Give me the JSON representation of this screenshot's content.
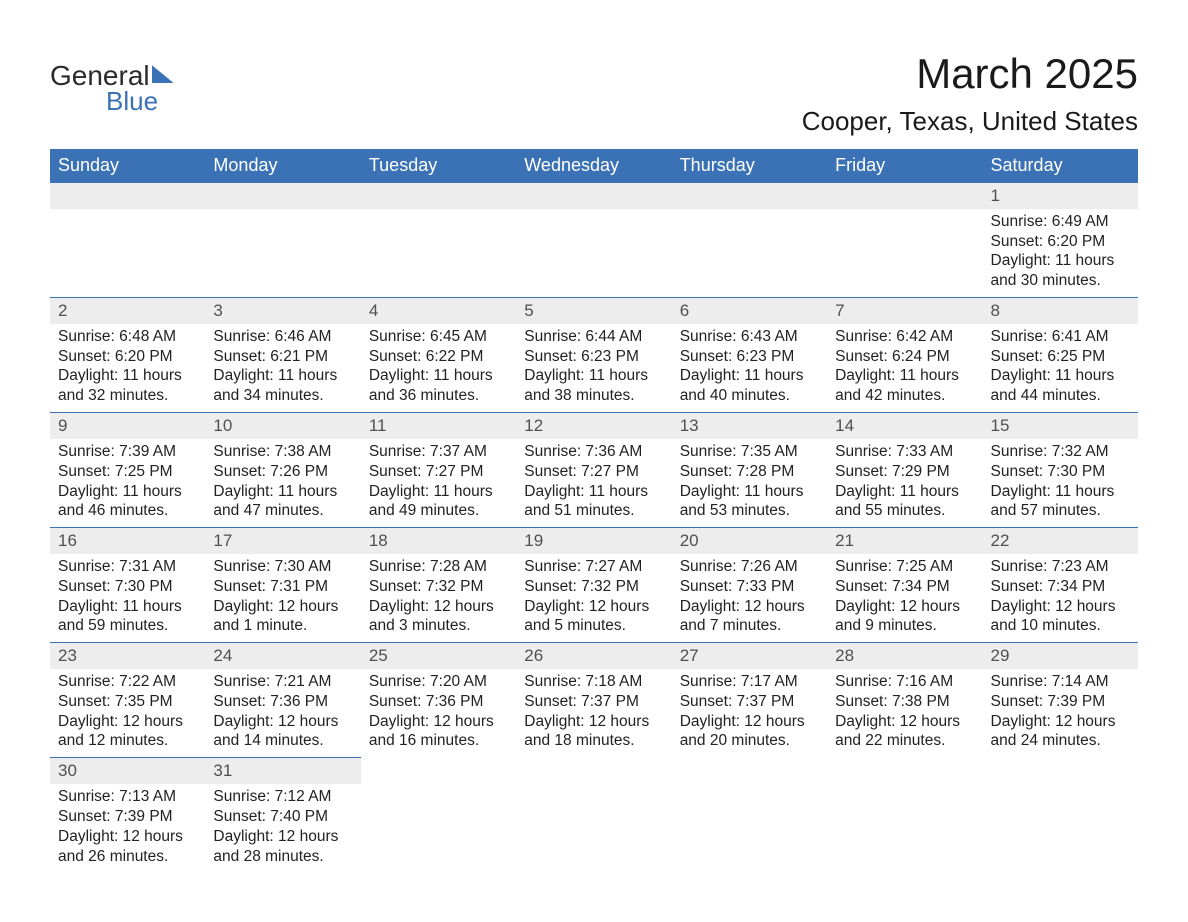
{
  "logo": {
    "word1": "General",
    "word2": "Blue"
  },
  "title": "March 2025",
  "location": "Cooper, Texas, United States",
  "weekdays": [
    "Sunday",
    "Monday",
    "Tuesday",
    "Wednesday",
    "Thursday",
    "Friday",
    "Saturday"
  ],
  "colors": {
    "header_bg": "#3a72b5",
    "header_text": "#ffffff",
    "daynum_bg": "#ededed",
    "row_border": "#3a72b5",
    "background": "#ffffff",
    "text": "#222222"
  },
  "weeks": [
    [
      null,
      null,
      null,
      null,
      null,
      null,
      {
        "n": "1",
        "sr": "6:49 AM",
        "ss": "6:20 PM",
        "dl": "11 hours and 30 minutes."
      }
    ],
    [
      {
        "n": "2",
        "sr": "6:48 AM",
        "ss": "6:20 PM",
        "dl": "11 hours and 32 minutes."
      },
      {
        "n": "3",
        "sr": "6:46 AM",
        "ss": "6:21 PM",
        "dl": "11 hours and 34 minutes."
      },
      {
        "n": "4",
        "sr": "6:45 AM",
        "ss": "6:22 PM",
        "dl": "11 hours and 36 minutes."
      },
      {
        "n": "5",
        "sr": "6:44 AM",
        "ss": "6:23 PM",
        "dl": "11 hours and 38 minutes."
      },
      {
        "n": "6",
        "sr": "6:43 AM",
        "ss": "6:23 PM",
        "dl": "11 hours and 40 minutes."
      },
      {
        "n": "7",
        "sr": "6:42 AM",
        "ss": "6:24 PM",
        "dl": "11 hours and 42 minutes."
      },
      {
        "n": "8",
        "sr": "6:41 AM",
        "ss": "6:25 PM",
        "dl": "11 hours and 44 minutes."
      }
    ],
    [
      {
        "n": "9",
        "sr": "7:39 AM",
        "ss": "7:25 PM",
        "dl": "11 hours and 46 minutes."
      },
      {
        "n": "10",
        "sr": "7:38 AM",
        "ss": "7:26 PM",
        "dl": "11 hours and 47 minutes."
      },
      {
        "n": "11",
        "sr": "7:37 AM",
        "ss": "7:27 PM",
        "dl": "11 hours and 49 minutes."
      },
      {
        "n": "12",
        "sr": "7:36 AM",
        "ss": "7:27 PM",
        "dl": "11 hours and 51 minutes."
      },
      {
        "n": "13",
        "sr": "7:35 AM",
        "ss": "7:28 PM",
        "dl": "11 hours and 53 minutes."
      },
      {
        "n": "14",
        "sr": "7:33 AM",
        "ss": "7:29 PM",
        "dl": "11 hours and 55 minutes."
      },
      {
        "n": "15",
        "sr": "7:32 AM",
        "ss": "7:30 PM",
        "dl": "11 hours and 57 minutes."
      }
    ],
    [
      {
        "n": "16",
        "sr": "7:31 AM",
        "ss": "7:30 PM",
        "dl": "11 hours and 59 minutes."
      },
      {
        "n": "17",
        "sr": "7:30 AM",
        "ss": "7:31 PM",
        "dl": "12 hours and 1 minute."
      },
      {
        "n": "18",
        "sr": "7:28 AM",
        "ss": "7:32 PM",
        "dl": "12 hours and 3 minutes."
      },
      {
        "n": "19",
        "sr": "7:27 AM",
        "ss": "7:32 PM",
        "dl": "12 hours and 5 minutes."
      },
      {
        "n": "20",
        "sr": "7:26 AM",
        "ss": "7:33 PM",
        "dl": "12 hours and 7 minutes."
      },
      {
        "n": "21",
        "sr": "7:25 AM",
        "ss": "7:34 PM",
        "dl": "12 hours and 9 minutes."
      },
      {
        "n": "22",
        "sr": "7:23 AM",
        "ss": "7:34 PM",
        "dl": "12 hours and 10 minutes."
      }
    ],
    [
      {
        "n": "23",
        "sr": "7:22 AM",
        "ss": "7:35 PM",
        "dl": "12 hours and 12 minutes."
      },
      {
        "n": "24",
        "sr": "7:21 AM",
        "ss": "7:36 PM",
        "dl": "12 hours and 14 minutes."
      },
      {
        "n": "25",
        "sr": "7:20 AM",
        "ss": "7:36 PM",
        "dl": "12 hours and 16 minutes."
      },
      {
        "n": "26",
        "sr": "7:18 AM",
        "ss": "7:37 PM",
        "dl": "12 hours and 18 minutes."
      },
      {
        "n": "27",
        "sr": "7:17 AM",
        "ss": "7:37 PM",
        "dl": "12 hours and 20 minutes."
      },
      {
        "n": "28",
        "sr": "7:16 AM",
        "ss": "7:38 PM",
        "dl": "12 hours and 22 minutes."
      },
      {
        "n": "29",
        "sr": "7:14 AM",
        "ss": "7:39 PM",
        "dl": "12 hours and 24 minutes."
      }
    ],
    [
      {
        "n": "30",
        "sr": "7:13 AM",
        "ss": "7:39 PM",
        "dl": "12 hours and 26 minutes."
      },
      {
        "n": "31",
        "sr": "7:12 AM",
        "ss": "7:40 PM",
        "dl": "12 hours and 28 minutes."
      },
      null,
      null,
      null,
      null,
      null
    ]
  ]
}
